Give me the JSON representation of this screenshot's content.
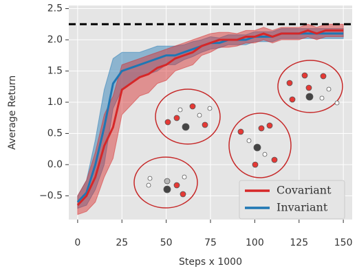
{
  "chart_data": {
    "type": "line",
    "x_label": "Steps x 1000",
    "y_label": "Average Return",
    "xlim": [
      -5,
      155
    ],
    "ylim": [
      -0.88,
      2.55
    ],
    "xticks": [
      0,
      25,
      50,
      75,
      100,
      125,
      150
    ],
    "yticks": [
      {
        "value": -0.5,
        "label": "−0.5"
      },
      {
        "value": 0,
        "label": "0.0"
      },
      0.5,
      {
        "value": 1,
        "label": "1.0"
      },
      1.5,
      {
        "value": 2,
        "label": "2.0"
      },
      2.5
    ],
    "grid": true,
    "legend": "lower right",
    "reference_line": {
      "value": 2.25,
      "color": "#000000"
    },
    "x": [
      0,
      5,
      10,
      15,
      20,
      25,
      30,
      35,
      40,
      45,
      50,
      55,
      60,
      65,
      70,
      75,
      80,
      85,
      90,
      95,
      100,
      105,
      110,
      115,
      120,
      125,
      130,
      135,
      140,
      145,
      150
    ],
    "series": [
      {
        "name": "Invariant",
        "color": "#1f77b4",
        "values": [
          -0.6,
          -0.45,
          0.0,
          0.6,
          1.3,
          1.5,
          1.55,
          1.6,
          1.65,
          1.7,
          1.75,
          1.75,
          1.8,
          1.85,
          1.9,
          1.95,
          1.95,
          2.0,
          2.0,
          2.0,
          2.05,
          2.05,
          2.05,
          2.1,
          2.1,
          2.1,
          2.1,
          2.1,
          2.1,
          2.1,
          2.1
        ],
        "lower": [
          -0.7,
          -0.65,
          -0.4,
          0.0,
          0.9,
          1.2,
          1.3,
          1.4,
          1.45,
          1.5,
          1.6,
          1.6,
          1.68,
          1.73,
          1.8,
          1.85,
          1.87,
          1.92,
          1.92,
          1.92,
          1.97,
          1.97,
          1.97,
          2.02,
          2.02,
          2.02,
          2.02,
          2.02,
          2.02,
          2.02,
          2.02
        ],
        "upper": [
          -0.5,
          -0.25,
          0.4,
          1.2,
          1.7,
          1.8,
          1.8,
          1.8,
          1.85,
          1.9,
          1.9,
          1.9,
          1.92,
          1.97,
          2.0,
          2.05,
          2.03,
          2.08,
          2.08,
          2.08,
          2.13,
          2.13,
          2.13,
          2.18,
          2.18,
          2.18,
          2.18,
          2.18,
          2.18,
          2.18,
          2.18
        ]
      },
      {
        "name": "Covariant",
        "color": "#d62728",
        "values": [
          -0.65,
          -0.5,
          -0.2,
          0.3,
          0.6,
          1.2,
          1.3,
          1.4,
          1.45,
          1.55,
          1.6,
          1.7,
          1.75,
          1.8,
          1.9,
          1.95,
          2.0,
          2.0,
          2.0,
          2.05,
          2.05,
          2.1,
          2.05,
          2.1,
          2.1,
          2.1,
          2.15,
          2.1,
          2.15,
          2.15,
          2.15
        ],
        "lower": [
          -0.8,
          -0.75,
          -0.6,
          -0.2,
          0.1,
          0.8,
          0.95,
          1.1,
          1.15,
          1.3,
          1.35,
          1.5,
          1.55,
          1.6,
          1.75,
          1.8,
          1.88,
          1.88,
          1.9,
          1.95,
          1.95,
          2.0,
          1.95,
          2.0,
          2.0,
          2.0,
          2.05,
          2.0,
          2.05,
          2.05,
          2.05
        ],
        "upper": [
          -0.5,
          -0.25,
          0.2,
          0.8,
          1.1,
          1.6,
          1.65,
          1.7,
          1.75,
          1.8,
          1.85,
          1.9,
          1.95,
          2.0,
          2.05,
          2.1,
          2.12,
          2.12,
          2.1,
          2.15,
          2.15,
          2.2,
          2.15,
          2.2,
          2.2,
          2.2,
          2.25,
          2.2,
          2.25,
          2.25,
          2.25
        ]
      }
    ]
  }
}
